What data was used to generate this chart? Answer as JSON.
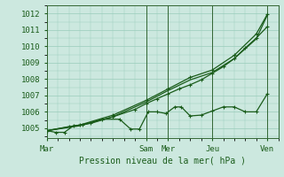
{
  "background_color": "#cce8df",
  "grid_color": "#99ccbb",
  "line_color": "#1a5c1a",
  "xlabel": "Pression niveau de la mer( hPa )",
  "ylim": [
    1004.4,
    1012.5
  ],
  "yticks": [
    1005,
    1006,
    1007,
    1008,
    1009,
    1010,
    1011,
    1012
  ],
  "x_day_labels": [
    "Mar",
    "Sam",
    "Mer",
    "Jeu",
    "Ven"
  ],
  "x_day_positions": [
    0.0,
    4.5,
    5.5,
    7.5,
    10.0
  ],
  "xlim": [
    0.0,
    10.5
  ],
  "series1_x": [
    0.0,
    0.4,
    0.8,
    1.2,
    1.6,
    2.5,
    3.3,
    3.8,
    4.2,
    4.6,
    5.0,
    5.4,
    5.8,
    6.1,
    6.5,
    7.0,
    7.5,
    8.0,
    8.5,
    9.0,
    9.5,
    10.0
  ],
  "series1_y": [
    1004.85,
    1004.75,
    1004.75,
    1005.15,
    1005.2,
    1005.55,
    1005.55,
    1004.95,
    1004.95,
    1006.0,
    1006.0,
    1005.9,
    1006.3,
    1006.3,
    1005.75,
    1005.8,
    1006.05,
    1006.3,
    1006.3,
    1006.0,
    1006.0,
    1007.1
  ],
  "series2_x": [
    0.0,
    1.0,
    2.0,
    3.0,
    4.0,
    4.5,
    5.0,
    5.5,
    6.0,
    6.5,
    7.0,
    7.5,
    8.0,
    8.5,
    9.0,
    9.5,
    10.0
  ],
  "series2_y": [
    1004.85,
    1005.1,
    1005.3,
    1005.7,
    1006.15,
    1006.5,
    1006.8,
    1007.1,
    1007.4,
    1007.65,
    1007.95,
    1008.35,
    1008.75,
    1009.25,
    1009.9,
    1010.5,
    1011.2
  ],
  "series3_x": [
    0.0,
    1.5,
    3.0,
    4.5,
    5.5,
    6.5,
    7.5,
    8.5,
    9.5,
    10.0
  ],
  "series3_y": [
    1004.85,
    1005.2,
    1005.8,
    1006.7,
    1007.4,
    1008.1,
    1008.55,
    1009.45,
    1010.75,
    1011.95
  ],
  "series4_x": [
    0.0,
    1.5,
    3.0,
    4.5,
    5.5,
    6.5,
    7.5,
    8.5,
    9.5,
    10.0
  ],
  "series4_y": [
    1004.85,
    1005.15,
    1005.7,
    1006.6,
    1007.3,
    1007.95,
    1008.4,
    1009.25,
    1010.45,
    1011.9
  ],
  "vline_positions": [
    0.0,
    4.5,
    5.5,
    7.5,
    10.0
  ],
  "vline_color": "#336633"
}
